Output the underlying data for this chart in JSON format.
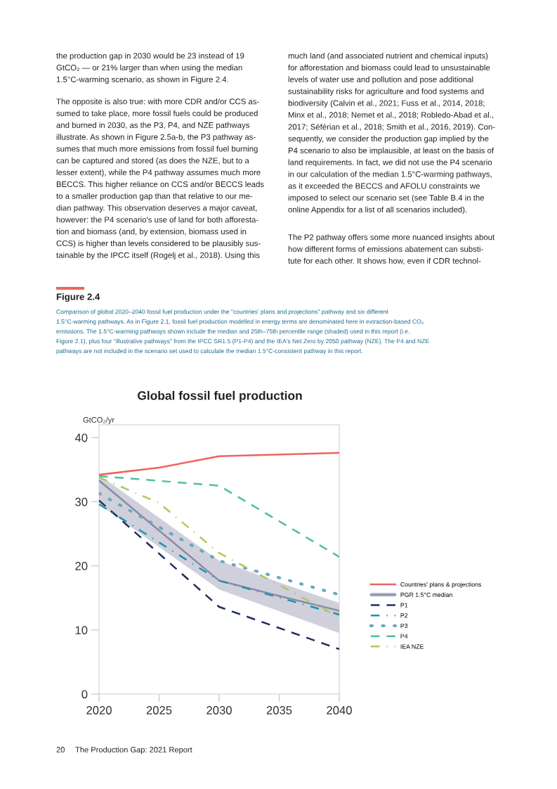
{
  "chart_data": {
    "type": "line",
    "title": "Global fossil fuel production",
    "ylabel": "GtCO₂/yr",
    "series": [
      {
        "name": "Countries' plans & projections",
        "color": "#ee6461",
        "line_style": "solid",
        "x": [
          2020,
          2025,
          2030,
          2040
        ],
        "values": [
          34.2,
          35.3,
          37.1,
          37.6
        ]
      },
      {
        "name": "PGR 1.5°C median",
        "color": "#8a8aa8",
        "line_style": "solid",
        "x": [
          2020,
          2030,
          2035,
          2040
        ],
        "values": [
          33.3,
          17.7,
          15.3,
          13.0
        ],
        "lower": [
          29.6,
          16.3,
          12.9,
          9.5
        ],
        "upper": [
          34.2,
          20.8,
          17.4,
          14.2
        ]
      },
      {
        "name": "P1",
        "color": "#1f2f5e",
        "line_style": "dashed",
        "x": [
          2020,
          2030,
          2040
        ],
        "values": [
          30.2,
          13.6,
          7.0
        ]
      },
      {
        "name": "P2",
        "color": "#1b94b0",
        "line_style": "dashdot",
        "x": [
          2020,
          2030,
          2040
        ],
        "values": [
          29.6,
          17.7,
          12.4
        ]
      },
      {
        "name": "P3",
        "color": "#6aa8c0",
        "line_style": "dotted",
        "x": [
          2020,
          2030,
          2040
        ],
        "values": [
          31.3,
          20.8,
          15.5
        ]
      },
      {
        "name": "P4",
        "color": "#4dbfa0",
        "line_style": "dashed",
        "x": [
          2020,
          2030,
          2040
        ],
        "values": [
          34.0,
          32.5,
          21.4
        ]
      },
      {
        "name": "IEA NZE",
        "color": "#a8cc5c",
        "line_style": "dashdot",
        "x": [
          2020,
          2025,
          2030,
          2040
        ],
        "values": [
          33.8,
          29.8,
          22.0,
          12.0
        ]
      }
    ],
    "xlim": [
      2020,
      2040
    ],
    "xticks": [
      2020,
      2025,
      2030,
      2035,
      2040
    ],
    "ylim": [
      0,
      42
    ],
    "yticks": [
      0,
      10,
      20,
      30,
      40
    ],
    "grid": false,
    "legend": "right",
    "marker": "none",
    "annotations": [
      "the production gap in 2030 would be 23 instead of 19\nGtCO₂ — or 21% larger than when using the median\n1.5°C-warming scenario, as shown in Figure 2.4.",
      "The opposite is also true: with more CDR and/or CCS as-\nsumed to take place, more fossil fuels could be produced\nand burned in 2030, as the P3, P4, and NZE pathways\nillustrate. As shown in Figure 2.5a-b, the P3 pathway as-\nsumes that much more emissions from fossil fuel burning\ncan be captured and stored (as does the NZE, but to a\nlesser extent), while the P4 pathway assumes much more\nBECCS. This higher reliance on CCS and/or BECCS leads\nto a smaller production gap than that relative to our me-\ndian pathway. This observation deserves a major caveat,\nhowever: the P4 scenario's use of land for both afforesta-\ntion and biomass (and, by extension, biomass used in\nCCS) is higher than levels considered to be plausibly sus-\ntainable by the IPCC itself (Rogelj et al., 2018). Using this",
      "much land (and associated nutrient and chemical inputs)\nfor afforestation and biomass could lead to unsustainable\nlevels of water use and pollution and pose additional\nsustainability risks for agriculture and food systems and\nbiodiversity (Calvin et al., 2021; Fuss et al., 2014, 2018;\nMinx et al., 2018; Nemet et al., 2018; Robledo-Abad et al.,\n2017; Séférian et al., 2018; Smith et al., 2016, 2019). Con-\nsequently, we consider the production gap implied by the\nP4 scenario to also be implausible, at least on the basis of\nland requirements. In fact, we did not use the P4 scenario\nin our calculation of the median 1.5°C-warming pathways,\nas it exceeded the BECCS and AFOLU constraints we\nimposed to select our scenario set (see Table B.4 in the\nonline Appendix for a list of all scenarios included).",
      "The P2 pathway offers some more nuanced insights about\nhow different forms of emissions abatement can substi-\ntute for each other. It shows how, even if CDR technol-",
      "Figure 2.4",
      "Comparison of global 2020–2040 fossil fuel production under the \"countries' plans and projections\" pathway and six different\n1.5°C-warming pathways. As in Figure 2.1, fossil fuel production modelled in energy terms are denominated here in extraction-based CO₂\nemissions. The 1.5°C-warming pathways shown include the median and 25th–75th percentile range (shaded) used in this report (i.e.\nFigure 2.1), plus four \"illustrative pathways\" from the IPCC SR1.5 (P1-P4) and the IEA's Net Zero by 2050 pathway (NZE). The P4 and NZE\npathways are not included in the scenario set used to calculate the median 1.5°C-consistent pathway in this report.",
      "20",
      "The Production Gap: 2021 Report"
    ]
  }
}
